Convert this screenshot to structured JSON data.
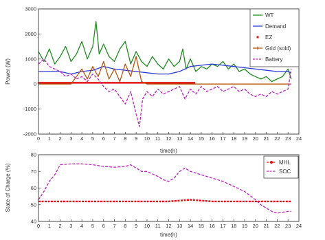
{
  "chart_data": [
    {
      "type": "line",
      "xlabel": "time(h)",
      "ylabel": "Power (W)",
      "xlim": [
        0,
        24
      ],
      "ylim": [
        -2000,
        3000
      ],
      "x_ticks": [
        0,
        1,
        2,
        3,
        4,
        5,
        6,
        7,
        8,
        9,
        10,
        11,
        12,
        13,
        14,
        15,
        16,
        17,
        18,
        19,
        20,
        21,
        22,
        23,
        24
      ],
      "y_ticks": [
        -2000,
        -1000,
        0,
        1000,
        2000,
        3000
      ],
      "legend_position": "top-right",
      "series": [
        {
          "name": "WT",
          "color": "#1f8a1f",
          "style": "solid",
          "x": [
            0,
            0.5,
            1,
            1.5,
            2,
            2.5,
            3,
            3.5,
            4,
            4.5,
            5,
            5.3,
            5.6,
            6,
            6.5,
            7,
            7.5,
            8,
            8.5,
            9,
            9.5,
            10,
            10.5,
            11,
            11.5,
            12,
            12.5,
            13,
            13.3,
            13.6,
            14,
            14.5,
            15,
            15.5,
            16,
            16.5,
            17,
            17.5,
            18,
            18.5,
            19,
            19.5,
            20,
            20.5,
            21,
            21.5,
            22,
            22.5,
            23,
            23.3
          ],
          "y": [
            1300,
            900,
            1400,
            800,
            1100,
            1500,
            900,
            1200,
            1700,
            1000,
            1500,
            2500,
            1200,
            1600,
            1100,
            900,
            1400,
            1700,
            800,
            1300,
            900,
            700,
            1100,
            800,
            600,
            1000,
            700,
            900,
            1400,
            600,
            1000,
            500,
            700,
            600,
            800,
            700,
            900,
            600,
            800,
            500,
            600,
            400,
            300,
            200,
            300,
            100,
            200,
            300,
            600,
            200
          ]
        },
        {
          "name": "Demand",
          "color": "#2a3bd6",
          "style": "solid",
          "x": [
            0,
            1,
            2,
            3,
            4,
            5,
            6,
            7,
            8,
            9,
            10,
            11,
            12,
            13,
            14,
            15,
            16,
            17,
            18,
            19,
            20,
            21,
            22,
            23,
            23.3
          ],
          "y": [
            500,
            500,
            500,
            400,
            500,
            550,
            700,
            600,
            550,
            500,
            450,
            400,
            400,
            500,
            700,
            750,
            800,
            750,
            700,
            650,
            600,
            550,
            500,
            500,
            450
          ]
        },
        {
          "name": "EZ",
          "color": "#e01010",
          "style": "dots",
          "x": [
            0,
            0.5,
            1,
            1.5,
            2,
            2.5,
            3,
            3.5,
            4,
            4.5,
            5,
            5.5,
            6,
            6.5,
            7,
            7.5,
            8,
            8.5,
            9,
            9.5,
            10,
            10.5,
            11,
            11.5,
            12,
            12.5,
            13,
            13.5,
            14,
            14.5
          ],
          "y": [
            50,
            50,
            50,
            50,
            50,
            50,
            50,
            50,
            50,
            50,
            50,
            50,
            50,
            50,
            50,
            50,
            50,
            50,
            50,
            50,
            50,
            50,
            50,
            50,
            50,
            50,
            50,
            50,
            50,
            50
          ]
        },
        {
          "name": "Grid (sold)",
          "color": "#b5530e",
          "style": "solid",
          "x": [
            0,
            1,
            2,
            3,
            4,
            4.5,
            5,
            5.5,
            6,
            6.5,
            7,
            7.5,
            8,
            8.5,
            9,
            9.5,
            10,
            11,
            12,
            13,
            14,
            15,
            16,
            17,
            18,
            19,
            20,
            21,
            22,
            23,
            23.3
          ],
          "y": [
            0,
            0,
            0,
            0,
            600,
            200,
            700,
            300,
            900,
            200,
            600,
            100,
            800,
            300,
            1100,
            100,
            0,
            0,
            0,
            0,
            0,
            0,
            0,
            0,
            0,
            0,
            0,
            0,
            0,
            0,
            0
          ]
        },
        {
          "name": "Battery",
          "color": "#c020c0",
          "style": "dash",
          "x": [
            0,
            0.5,
            1,
            1.5,
            2,
            2.5,
            3,
            3.5,
            4,
            4.5,
            5,
            5.5,
            6,
            6.5,
            7,
            7.5,
            8,
            8.5,
            9,
            9.3,
            9.6,
            10,
            10.5,
            11,
            11.5,
            12,
            12.5,
            13,
            13.5,
            14,
            14.5,
            15,
            15.5,
            16,
            16.5,
            17,
            17.5,
            18,
            18.5,
            19,
            19.5,
            20,
            20.5,
            21,
            21.5,
            22,
            22.5,
            23,
            23.3
          ],
          "y": [
            800,
            1000,
            700,
            600,
            500,
            300,
            400,
            200,
            300,
            100,
            400,
            200,
            -100,
            -300,
            -200,
            -500,
            -800,
            -300,
            -1200,
            -1700,
            -600,
            -300,
            -500,
            -200,
            -400,
            -300,
            -200,
            -100,
            -600,
            -200,
            -400,
            -100,
            -300,
            -200,
            -100,
            -300,
            -200,
            -100,
            -300,
            -200,
            -400,
            -500,
            -400,
            -500,
            -300,
            -400,
            -300,
            -200,
            600
          ]
        }
      ]
    },
    {
      "type": "line",
      "xlabel": "time(h)",
      "ylabel": "State of Charge (%)",
      "xlim": [
        0,
        24
      ],
      "ylim": [
        40,
        80
      ],
      "x_ticks": [
        0,
        1,
        2,
        3,
        4,
        5,
        6,
        7,
        8,
        9,
        10,
        11,
        12,
        13,
        14,
        15,
        16,
        17,
        18,
        19,
        20,
        21,
        22,
        23,
        24
      ],
      "y_ticks": [
        40,
        50,
        60,
        70,
        80
      ],
      "legend_position": "top-right",
      "series": [
        {
          "name": "MHL",
          "color": "#e01010",
          "style": "dash-dot-marker",
          "x": [
            0,
            1,
            2,
            3,
            4,
            5,
            6,
            7,
            8,
            9,
            10,
            11,
            12,
            13,
            14,
            15,
            16,
            17,
            18,
            19,
            20,
            21,
            22,
            23,
            23.3
          ],
          "y": [
            52,
            52,
            52,
            52,
            52,
            52,
            52,
            52,
            52,
            52,
            52,
            52,
            52,
            52.5,
            53,
            52.5,
            52,
            52,
            52,
            52,
            52,
            52,
            52,
            52,
            52
          ]
        },
        {
          "name": "SOC",
          "color": "#c020c0",
          "style": "dash",
          "x": [
            0,
            0.5,
            1,
            1.5,
            2,
            3,
            4,
            5,
            6,
            7,
            8,
            8.5,
            9,
            9.5,
            10,
            11,
            11.5,
            12,
            12.5,
            13,
            13.5,
            14,
            15,
            16,
            17,
            18,
            19,
            20,
            20.5,
            21,
            21.5,
            22,
            22.5,
            23,
            23.3
          ],
          "y": [
            53,
            58,
            64,
            68,
            74,
            74.5,
            74.5,
            74,
            73,
            72.5,
            73,
            74,
            72,
            70,
            70,
            67,
            65,
            64,
            66,
            70,
            72,
            70,
            68,
            66,
            64,
            61,
            58,
            53,
            50,
            48,
            46,
            45,
            45.5,
            46,
            46
          ]
        }
      ]
    }
  ]
}
